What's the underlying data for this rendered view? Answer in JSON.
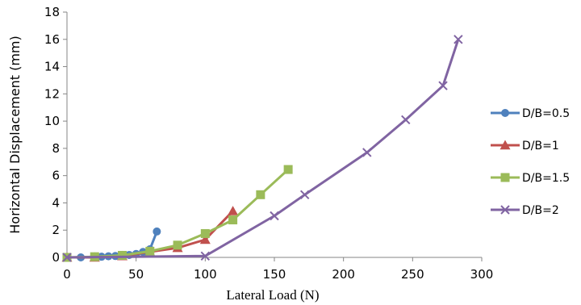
{
  "chart_data": {
    "type": "line",
    "title": "",
    "xlabel": "Lateral Load (N)",
    "ylabel": "Horizontal Displacement (mm)",
    "xlim": [
      0,
      300
    ],
    "ylim": [
      0,
      18
    ],
    "xticks": [
      0,
      50,
      100,
      150,
      200,
      250,
      300
    ],
    "yticks": [
      0,
      2,
      4,
      6,
      8,
      10,
      12,
      14,
      16,
      18
    ],
    "grid": false,
    "legend_position": "right",
    "series": [
      {
        "name": "D/B=0.5",
        "color": "#4F81BD",
        "marker": "circle",
        "x": [
          0,
          10,
          20,
          25,
          30,
          35,
          40,
          45,
          50,
          55,
          60,
          65
        ],
        "y": [
          0,
          0,
          0.02,
          0.05,
          0.08,
          0.1,
          0.12,
          0.18,
          0.25,
          0.4,
          0.6,
          1.9
        ]
      },
      {
        "name": "D/B=1",
        "color": "#C0504D",
        "marker": "triangle",
        "x": [
          0,
          20,
          40,
          60,
          80,
          100,
          120
        ],
        "y": [
          0,
          0,
          0.1,
          0.4,
          0.7,
          1.3,
          3.4
        ]
      },
      {
        "name": "D/B=1.5",
        "color": "#9BBB59",
        "marker": "square",
        "x": [
          0,
          20,
          40,
          60,
          80,
          100,
          120,
          140,
          160
        ],
        "y": [
          0,
          0.05,
          0.15,
          0.45,
          0.9,
          1.75,
          2.75,
          4.6,
          6.45
        ]
      },
      {
        "name": "D/B=2",
        "color": "#8064A2",
        "marker": "x",
        "x": [
          0,
          100,
          150,
          172,
          217,
          245,
          272,
          283
        ],
        "y": [
          0,
          0.1,
          3.05,
          4.6,
          7.7,
          10.1,
          12.6,
          16.0
        ]
      }
    ]
  }
}
